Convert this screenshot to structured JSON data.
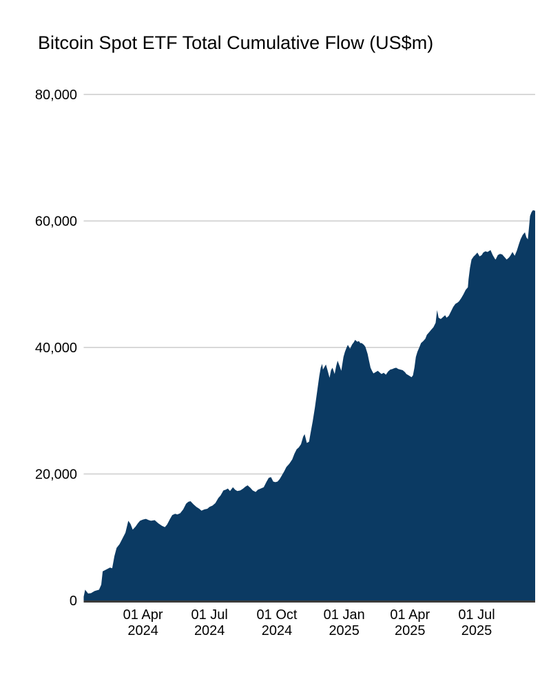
{
  "page": {
    "background": "#ffffff"
  },
  "chart_data": {
    "type": "area",
    "title": "Bitcoin Spot ETF Total Cumulative Flow (US$m)",
    "series_name": "Total Cumulative Flow",
    "unit": "US$m",
    "fill_color": "#0b3a63",
    "gridline_color": "#cccccc",
    "axis_line_color": "#3a3a3a",
    "text_color": "#000000",
    "grid": true,
    "legend": false,
    "ylim": [
      0,
      80000
    ],
    "y_ticks": [
      {
        "value": 0,
        "label": "0"
      },
      {
        "value": 20000,
        "label": "20,000"
      },
      {
        "value": 40000,
        "label": "40,000"
      },
      {
        "value": 60000,
        "label": "60,000"
      },
      {
        "value": 80000,
        "label": "80,000"
      }
    ],
    "x_ticks": [
      {
        "date": "2024-04-01",
        "line1": "01 Apr",
        "line2": "2024"
      },
      {
        "date": "2024-07-01",
        "line1": "01 Jul",
        "line2": "2024"
      },
      {
        "date": "2024-10-01",
        "line1": "01 Oct",
        "line2": "2024"
      },
      {
        "date": "2025-01-01",
        "line1": "01 Jan",
        "line2": "2025"
      },
      {
        "date": "2025-04-01",
        "line1": "01 Apr",
        "line2": "2025"
      },
      {
        "date": "2025-07-01",
        "line1": "01 Jul",
        "line2": "2025"
      }
    ],
    "x_range": [
      "2024-01-11",
      "2025-09-19"
    ],
    "points": [
      [
        "2024-01-11",
        600
      ],
      [
        "2024-01-13",
        1700
      ],
      [
        "2024-01-17",
        1100
      ],
      [
        "2024-01-21",
        1150
      ],
      [
        "2024-01-26",
        1500
      ],
      [
        "2024-02-01",
        1700
      ],
      [
        "2024-02-04",
        2500
      ],
      [
        "2024-02-06",
        4600
      ],
      [
        "2024-02-11",
        4900
      ],
      [
        "2024-02-16",
        5200
      ],
      [
        "2024-02-19",
        5100
      ],
      [
        "2024-02-22",
        7000
      ],
      [
        "2024-02-25",
        8300
      ],
      [
        "2024-02-29",
        8900
      ],
      [
        "2024-03-04",
        9800
      ],
      [
        "2024-03-08",
        10700
      ],
      [
        "2024-03-12",
        12600
      ],
      [
        "2024-03-15",
        12100
      ],
      [
        "2024-03-18",
        11200
      ],
      [
        "2024-03-22",
        11700
      ],
      [
        "2024-03-25",
        12200
      ],
      [
        "2024-03-28",
        12600
      ],
      [
        "2024-04-01",
        12800
      ],
      [
        "2024-04-05",
        12900
      ],
      [
        "2024-04-09",
        12700
      ],
      [
        "2024-04-12",
        12600
      ],
      [
        "2024-04-17",
        12700
      ],
      [
        "2024-04-22",
        12200
      ],
      [
        "2024-04-27",
        11800
      ],
      [
        "2024-05-01",
        11600
      ],
      [
        "2024-05-04",
        12000
      ],
      [
        "2024-05-08",
        12900
      ],
      [
        "2024-05-11",
        13500
      ],
      [
        "2024-05-15",
        13700
      ],
      [
        "2024-05-18",
        13600
      ],
      [
        "2024-05-22",
        13800
      ],
      [
        "2024-05-26",
        14400
      ],
      [
        "2024-05-30",
        15300
      ],
      [
        "2024-06-02",
        15600
      ],
      [
        "2024-06-05",
        15700
      ],
      [
        "2024-06-09",
        15200
      ],
      [
        "2024-06-13",
        14800
      ],
      [
        "2024-06-17",
        14500
      ],
      [
        "2024-06-20",
        14200
      ],
      [
        "2024-06-24",
        14400
      ],
      [
        "2024-06-28",
        14500
      ],
      [
        "2024-07-01",
        14800
      ],
      [
        "2024-07-05",
        15000
      ],
      [
        "2024-07-09",
        15400
      ],
      [
        "2024-07-13",
        16200
      ],
      [
        "2024-07-16",
        16600
      ],
      [
        "2024-07-20",
        17400
      ],
      [
        "2024-07-23",
        17500
      ],
      [
        "2024-07-26",
        17700
      ],
      [
        "2024-07-29",
        17300
      ],
      [
        "2024-08-02",
        17900
      ],
      [
        "2024-08-05",
        17500
      ],
      [
        "2024-08-08",
        17300
      ],
      [
        "2024-08-12",
        17400
      ],
      [
        "2024-08-16",
        17700
      ],
      [
        "2024-08-19",
        18000
      ],
      [
        "2024-08-22",
        18200
      ],
      [
        "2024-08-26",
        17800
      ],
      [
        "2024-08-29",
        17400
      ],
      [
        "2024-09-02",
        17150
      ],
      [
        "2024-09-05",
        17500
      ],
      [
        "2024-09-09",
        17700
      ],
      [
        "2024-09-13",
        17900
      ],
      [
        "2024-09-17",
        18800
      ],
      [
        "2024-09-20",
        19400
      ],
      [
        "2024-09-23",
        19500
      ],
      [
        "2024-09-26",
        18800
      ],
      [
        "2024-09-29",
        18700
      ],
      [
        "2024-10-02",
        18800
      ],
      [
        "2024-10-05",
        19200
      ],
      [
        "2024-10-08",
        19800
      ],
      [
        "2024-10-11",
        20400
      ],
      [
        "2024-10-14",
        21100
      ],
      [
        "2024-10-18",
        21600
      ],
      [
        "2024-10-22",
        22300
      ],
      [
        "2024-10-25",
        23200
      ],
      [
        "2024-10-28",
        23900
      ],
      [
        "2024-10-31",
        24200
      ],
      [
        "2024-11-03",
        24700
      ],
      [
        "2024-11-06",
        25900
      ],
      [
        "2024-11-08",
        26300
      ],
      [
        "2024-11-11",
        24900
      ],
      [
        "2024-11-14",
        25100
      ],
      [
        "2024-11-16",
        26400
      ],
      [
        "2024-11-19",
        28300
      ],
      [
        "2024-11-22",
        30500
      ],
      [
        "2024-11-25",
        33000
      ],
      [
        "2024-11-28",
        35500
      ],
      [
        "2024-11-30",
        36800
      ],
      [
        "2024-12-02",
        37400
      ],
      [
        "2024-12-03",
        36500
      ],
      [
        "2024-12-05",
        36900
      ],
      [
        "2024-12-07",
        37300
      ],
      [
        "2024-12-09",
        36500
      ],
      [
        "2024-12-12",
        35200
      ],
      [
        "2024-12-14",
        36400
      ],
      [
        "2024-12-16",
        36800
      ],
      [
        "2024-12-19",
        35800
      ],
      [
        "2024-12-21",
        37000
      ],
      [
        "2024-12-23",
        37900
      ],
      [
        "2024-12-26",
        37000
      ],
      [
        "2024-12-28",
        36300
      ],
      [
        "2024-12-31",
        38500
      ],
      [
        "2025-01-02",
        39300
      ],
      [
        "2025-01-04",
        39900
      ],
      [
        "2025-01-06",
        40400
      ],
      [
        "2025-01-09",
        39800
      ],
      [
        "2025-01-12",
        40500
      ],
      [
        "2025-01-14",
        40800
      ],
      [
        "2025-01-16",
        41200
      ],
      [
        "2025-01-19",
        40900
      ],
      [
        "2025-01-21",
        41000
      ],
      [
        "2025-01-23",
        40700
      ],
      [
        "2025-01-25",
        40700
      ],
      [
        "2025-01-28",
        40400
      ],
      [
        "2025-01-30",
        40100
      ],
      [
        "2025-02-02",
        39000
      ],
      [
        "2025-02-04",
        37900
      ],
      [
        "2025-02-06",
        36800
      ],
      [
        "2025-02-08",
        36300
      ],
      [
        "2025-02-10",
        35900
      ],
      [
        "2025-02-13",
        36100
      ],
      [
        "2025-02-16",
        36300
      ],
      [
        "2025-02-19",
        36000
      ],
      [
        "2025-02-21",
        35800
      ],
      [
        "2025-02-24",
        36000
      ],
      [
        "2025-02-27",
        35700
      ],
      [
        "2025-03-02",
        36200
      ],
      [
        "2025-03-05",
        36500
      ],
      [
        "2025-03-08",
        36600
      ],
      [
        "2025-03-10",
        36700
      ],
      [
        "2025-03-13",
        36800
      ],
      [
        "2025-03-16",
        36600
      ],
      [
        "2025-03-19",
        36500
      ],
      [
        "2025-03-22",
        36400
      ],
      [
        "2025-03-25",
        36100
      ],
      [
        "2025-03-27",
        35800
      ],
      [
        "2025-03-30",
        35600
      ],
      [
        "2025-04-03",
        35300
      ],
      [
        "2025-04-05",
        35600
      ],
      [
        "2025-04-07",
        36800
      ],
      [
        "2025-04-09",
        38500
      ],
      [
        "2025-04-11",
        39300
      ],
      [
        "2025-04-14",
        40100
      ],
      [
        "2025-04-16",
        40700
      ],
      [
        "2025-04-19",
        41000
      ],
      [
        "2025-04-22",
        41400
      ],
      [
        "2025-04-24",
        42000
      ],
      [
        "2025-04-27",
        42400
      ],
      [
        "2025-04-30",
        42800
      ],
      [
        "2025-05-03",
        43200
      ],
      [
        "2025-05-06",
        43900
      ],
      [
        "2025-05-08",
        45900
      ],
      [
        "2025-05-10",
        44700
      ],
      [
        "2025-05-13",
        44500
      ],
      [
        "2025-05-16",
        44800
      ],
      [
        "2025-05-19",
        45100
      ],
      [
        "2025-05-21",
        44700
      ],
      [
        "2025-05-24",
        45000
      ],
      [
        "2025-05-27",
        45700
      ],
      [
        "2025-05-30",
        46400
      ],
      [
        "2025-06-02",
        46900
      ],
      [
        "2025-06-05",
        47100
      ],
      [
        "2025-06-07",
        47300
      ],
      [
        "2025-06-10",
        47800
      ],
      [
        "2025-06-13",
        48400
      ],
      [
        "2025-06-16",
        49100
      ],
      [
        "2025-06-19",
        49500
      ],
      [
        "2025-06-20",
        50800
      ],
      [
        "2025-06-22",
        52600
      ],
      [
        "2025-06-24",
        53900
      ],
      [
        "2025-06-27",
        54400
      ],
      [
        "2025-06-29",
        54600
      ],
      [
        "2025-07-02",
        55000
      ],
      [
        "2025-07-05",
        54400
      ],
      [
        "2025-07-08",
        54600
      ],
      [
        "2025-07-10",
        55000
      ],
      [
        "2025-07-13",
        55200
      ],
      [
        "2025-07-16",
        55100
      ],
      [
        "2025-07-20",
        55400
      ],
      [
        "2025-07-23",
        54600
      ],
      [
        "2025-07-26",
        54000
      ],
      [
        "2025-07-27",
        53900
      ],
      [
        "2025-07-30",
        54600
      ],
      [
        "2025-08-02",
        54800
      ],
      [
        "2025-08-05",
        54700
      ],
      [
        "2025-08-08",
        54300
      ],
      [
        "2025-08-11",
        53900
      ],
      [
        "2025-08-14",
        54200
      ],
      [
        "2025-08-16",
        54500
      ],
      [
        "2025-08-19",
        55100
      ],
      [
        "2025-08-22",
        54500
      ],
      [
        "2025-08-25",
        55300
      ],
      [
        "2025-08-28",
        56400
      ],
      [
        "2025-08-30",
        57100
      ],
      [
        "2025-09-02",
        57800
      ],
      [
        "2025-09-05",
        58200
      ],
      [
        "2025-09-07",
        57400
      ],
      [
        "2025-09-09",
        57100
      ],
      [
        "2025-09-11",
        59500
      ],
      [
        "2025-09-12",
        60800
      ],
      [
        "2025-09-14",
        61400
      ],
      [
        "2025-09-16",
        61700
      ],
      [
        "2025-09-19",
        61600
      ]
    ]
  }
}
